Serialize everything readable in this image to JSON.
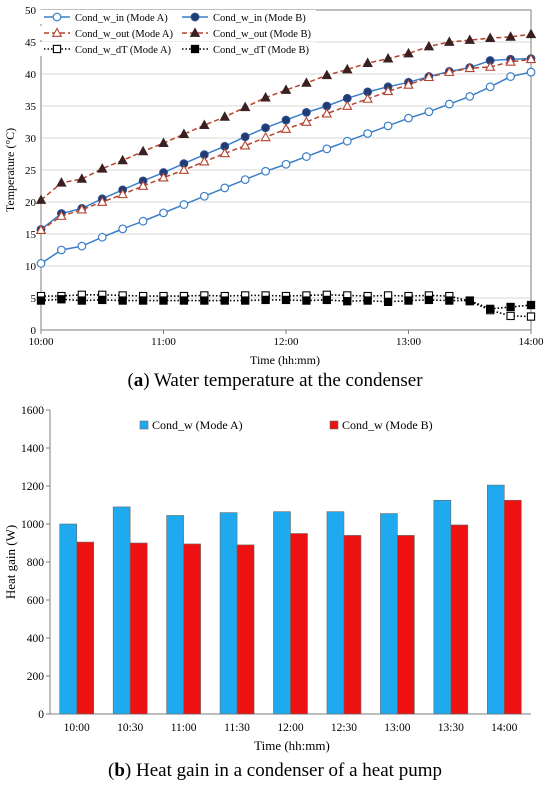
{
  "chart_data": [
    {
      "type": "line",
      "xlabel": "Time (hh:mm)",
      "ylabel": "Temperature (°C)",
      "x_ticks": [
        "10:00",
        "11:00",
        "12:00",
        "13:00",
        "14:00"
      ],
      "ylim": [
        0,
        50
      ],
      "y_ticks": [
        0,
        5,
        10,
        15,
        20,
        25,
        30,
        35,
        40,
        45,
        50
      ],
      "x_minutes": [
        0,
        10,
        20,
        30,
        40,
        50,
        60,
        70,
        80,
        90,
        100,
        110,
        120,
        130,
        140,
        150,
        160,
        170,
        180,
        190,
        200,
        210,
        220,
        230,
        240
      ],
      "legend_placement": "top-left",
      "series": [
        {
          "name": "Cond_w_in (Mode A)",
          "color": "#3a7fc8",
          "line": "solid",
          "marker": "circle-open",
          "values": [
            10.4,
            12.5,
            13.1,
            14.5,
            15.8,
            17.0,
            18.3,
            19.6,
            20.9,
            22.2,
            23.5,
            24.8,
            25.9,
            27.1,
            28.3,
            29.5,
            30.7,
            31.9,
            33.1,
            34.1,
            35.3,
            36.5,
            38.0,
            39.6,
            40.3
          ]
        },
        {
          "name": "Cond_w_in (Mode B)",
          "color": "#3a7fc8",
          "line": "solid",
          "marker": "circle-filled",
          "values": [
            15.7,
            18.2,
            19.0,
            20.5,
            21.9,
            23.3,
            24.6,
            26.0,
            27.4,
            28.7,
            30.2,
            31.6,
            32.8,
            34.0,
            35.0,
            36.2,
            37.2,
            38.0,
            38.7,
            39.6,
            40.4,
            41.0,
            42.1,
            42.3,
            42.4
          ]
        },
        {
          "name": "Cond_w_out (Mode A)",
          "color": "#b5442f",
          "line": "dashed",
          "marker": "triangle-open",
          "values": [
            15.6,
            17.8,
            18.8,
            20.0,
            21.2,
            22.5,
            23.8,
            25.0,
            26.3,
            27.6,
            28.8,
            30.1,
            31.4,
            32.5,
            33.8,
            35.0,
            36.1,
            37.3,
            38.3,
            39.5,
            40.3,
            40.9,
            41.1,
            41.9,
            42.3
          ]
        },
        {
          "name": "Cond_w_out (Mode B)",
          "color": "#b5442f",
          "line": "dashed",
          "marker": "triangle-filled",
          "values": [
            20.3,
            23.0,
            23.6,
            25.2,
            26.5,
            27.9,
            29.2,
            30.6,
            32.0,
            33.3,
            34.8,
            36.3,
            37.5,
            38.6,
            39.8,
            40.7,
            41.7,
            42.4,
            43.2,
            44.3,
            45.0,
            45.3,
            45.6,
            45.8,
            46.2
          ]
        },
        {
          "name": "Cond_w_dT (Mode A)",
          "color": "#000000",
          "line": "dotted",
          "marker": "square-open",
          "values": [
            5.3,
            5.3,
            5.5,
            5.5,
            5.4,
            5.3,
            5.3,
            5.3,
            5.4,
            5.3,
            5.4,
            5.4,
            5.3,
            5.4,
            5.5,
            5.4,
            5.3,
            5.4,
            5.3,
            5.4,
            5.3,
            4.5,
            3.1,
            2.2,
            2.1
          ]
        },
        {
          "name": "Cond_w_dT (Mode B)",
          "color": "#000000",
          "line": "dotted",
          "marker": "square-filled",
          "values": [
            4.6,
            4.8,
            4.6,
            4.7,
            4.6,
            4.6,
            4.6,
            4.6,
            4.6,
            4.6,
            4.6,
            4.7,
            4.7,
            4.6,
            4.7,
            4.5,
            4.6,
            4.4,
            4.6,
            4.7,
            4.6,
            4.6,
            3.3,
            3.6,
            3.9
          ]
        }
      ]
    },
    {
      "type": "bar",
      "xlabel": "Time (hh:mm)",
      "ylabel": "Heat gain (W)",
      "categories": [
        "10:00",
        "10:30",
        "11:00",
        "11:30",
        "12:00",
        "12:30",
        "13:00",
        "13:30",
        "14:00"
      ],
      "ylim": [
        0,
        1600
      ],
      "y_ticks": [
        0,
        200,
        400,
        600,
        800,
        1000,
        1200,
        1400,
        1600
      ],
      "legend_placement": "top-center",
      "series": [
        {
          "name": "Cond_w (Mode A)",
          "color": "#1fa9ee",
          "values": [
            1000,
            1090,
            1045,
            1060,
            1065,
            1065,
            1055,
            1125,
            1205
          ]
        },
        {
          "name": "Cond_w (Mode B)",
          "color": "#ee1111",
          "values": [
            905,
            900,
            895,
            890,
            950,
            940,
            940,
            995,
            1125
          ]
        }
      ]
    }
  ],
  "captions": {
    "a_label": "a",
    "a_text": " Water temperature at the condenser",
    "b_label": "b",
    "b_text": " Heat gain in a condenser of a heat pump"
  }
}
